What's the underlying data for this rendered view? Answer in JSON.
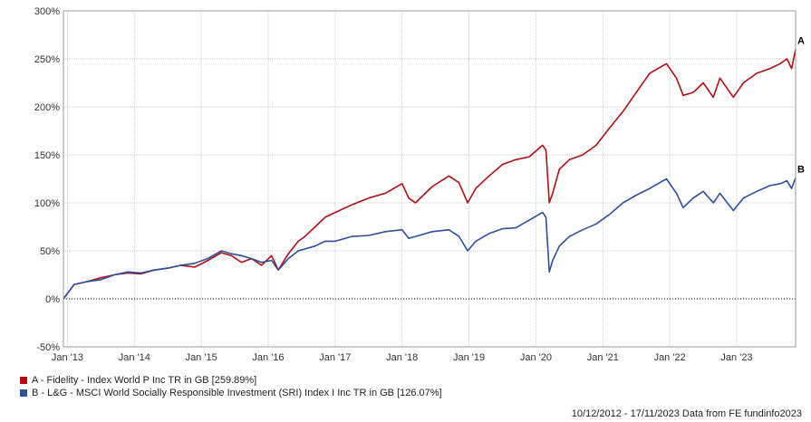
{
  "chart_data": {
    "type": "line",
    "title": "",
    "xlabel": "",
    "ylabel": "",
    "ylim": [
      -50,
      300
    ],
    "yticks": [
      "300%",
      "250%",
      "200%",
      "150%",
      "100%",
      "50%",
      "0%",
      "-50%"
    ],
    "xticks": [
      "Jan '13",
      "Jan '14",
      "Jan '15",
      "Jan '16",
      "Jan '17",
      "Jan '18",
      "Jan '19",
      "Jan '20",
      "Jan '21",
      "Jan '22",
      "Jan '23"
    ],
    "grid": true,
    "legend_position": "bottom-left",
    "x": [
      2012.94,
      2013.1,
      2013.3,
      2013.5,
      2013.7,
      2013.9,
      2014.1,
      2014.3,
      2014.5,
      2014.7,
      2014.9,
      2015.1,
      2015.3,
      2015.45,
      2015.6,
      2015.75,
      2015.9,
      2016.05,
      2016.15,
      2016.3,
      2016.45,
      2016.55,
      2016.7,
      2016.85,
      2017.0,
      2017.25,
      2017.5,
      2017.75,
      2018.0,
      2018.1,
      2018.2,
      2018.45,
      2018.7,
      2018.85,
      2018.98,
      2019.1,
      2019.3,
      2019.5,
      2019.7,
      2019.9,
      2020.1,
      2020.15,
      2020.2,
      2020.25,
      2020.35,
      2020.5,
      2020.7,
      2020.9,
      2021.1,
      2021.3,
      2021.5,
      2021.7,
      2021.95,
      2022.1,
      2022.2,
      2022.35,
      2022.5,
      2022.65,
      2022.75,
      2022.95,
      2023.1,
      2023.3,
      2023.5,
      2023.65,
      2023.75,
      2023.82,
      2023.88
    ],
    "series": [
      {
        "name": "A - Fidelity - Index World P Inc TR in GB [259.89%]",
        "label": "A",
        "color": "#b00e14",
        "values": [
          0,
          15,
          18,
          22,
          25,
          27,
          26,
          30,
          32,
          35,
          33,
          40,
          48,
          45,
          38,
          42,
          35,
          45,
          30,
          47,
          60,
          65,
          75,
          85,
          90,
          98,
          105,
          110,
          120,
          105,
          100,
          117,
          128,
          121,
          100,
          115,
          128,
          140,
          145,
          148,
          160,
          155,
          100,
          110,
          135,
          145,
          150,
          160,
          178,
          195,
          215,
          235,
          245,
          230,
          212,
          215,
          225,
          210,
          230,
          210,
          225,
          235,
          240,
          245,
          250,
          240,
          259.89
        ]
      },
      {
        "name": "B - L&G - MSCI World Socially Responsible Investment (SRI) Index I Inc TR in GB [126.07%]",
        "label": "B",
        "color": "#2e4f9e",
        "values": [
          0,
          15,
          18,
          20,
          25,
          28,
          27,
          30,
          32,
          35,
          37,
          42,
          50,
          47,
          45,
          42,
          38,
          40,
          30,
          42,
          50,
          52,
          55,
          60,
          60,
          65,
          66,
          70,
          72,
          63,
          65,
          70,
          72,
          65,
          50,
          60,
          68,
          73,
          74,
          82,
          90,
          85,
          28,
          40,
          55,
          65,
          72,
          78,
          88,
          100,
          108,
          115,
          125,
          110,
          95,
          105,
          112,
          100,
          110,
          92,
          105,
          112,
          118,
          120,
          123,
          115,
          126.07
        ]
      }
    ]
  },
  "footer": {
    "date_range": "10/12/2012 - 17/11/2023",
    "source": "Data from FE fundinfo2023"
  }
}
